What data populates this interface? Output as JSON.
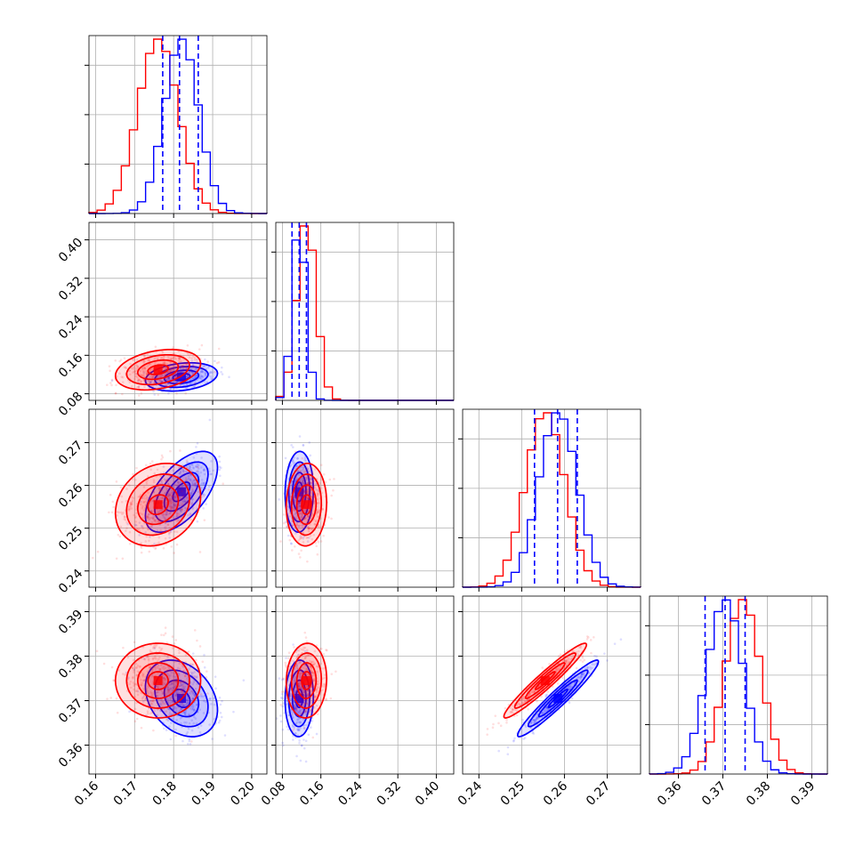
{
  "chart_data": {
    "type": "corner",
    "colors": {
      "a": "#0000ff",
      "b": "#ff0000",
      "grid": "#b0b0b0",
      "axis": "#000000"
    },
    "grid": true,
    "parameters": [
      {
        "range": [
          0.1583,
          0.2039
        ],
        "ticks": [
          0.16,
          0.17,
          0.18,
          0.19,
          0.2
        ],
        "tick_labels": [
          "0.16",
          "0.17",
          "0.18",
          "0.19",
          "0.20"
        ]
      },
      {
        "range": [
          0.0663,
          0.4362
        ],
        "ticks": [
          0.08,
          0.16,
          0.24,
          0.32,
          0.4
        ],
        "tick_labels": [
          "0.08",
          "0.16",
          "0.24",
          "0.32",
          "0.40"
        ]
      },
      {
        "range": [
          0.2362,
          0.2778
        ],
        "ticks": [
          0.24,
          0.25,
          0.26,
          0.27
        ],
        "tick_labels": [
          "0.24",
          "0.25",
          "0.26",
          "0.27"
        ]
      },
      {
        "range": [
          0.3535,
          0.3935
        ],
        "ticks": [
          0.36,
          0.37,
          0.38,
          0.39
        ],
        "tick_labels": [
          "0.36",
          "0.37",
          "0.38",
          "0.39"
        ]
      }
    ],
    "series": [
      {
        "key": "a",
        "mean": [
          0.182,
          0.115,
          0.2585,
          0.3705
        ],
        "sd": [
          0.0044,
          0.014,
          0.0045,
          0.0041
        ]
      },
      {
        "key": "b",
        "mean": [
          0.176,
          0.13,
          0.2555,
          0.3745
        ],
        "sd": [
          0.0052,
          0.02,
          0.0046,
          0.004
        ]
      }
    ],
    "quantile_lines": [
      [
        0.1772,
        0.1815,
        0.1863
      ],
      [
        0.1,
        0.115,
        0.13
      ],
      [
        0.253,
        0.2584,
        0.263
      ],
      [
        0.366,
        0.3705,
        0.375
      ]
    ],
    "correlations": [
      {
        "pair": [
          0,
          1
        ],
        "a": 0.25,
        "b": 0.3
      },
      {
        "pair": [
          0,
          2
        ],
        "a": 0.6,
        "b": 0.2
      },
      {
        "pair": [
          0,
          3
        ],
        "a": -0.3,
        "b": 0.0
      },
      {
        "pair": [
          1,
          2
        ],
        "a": 0.05,
        "b": 0.05
      },
      {
        "pair": [
          1,
          3
        ],
        "a": 0.05,
        "b": 0.05
      },
      {
        "pair": [
          2,
          3
        ],
        "a": 0.96,
        "b": 0.96
      }
    ]
  }
}
